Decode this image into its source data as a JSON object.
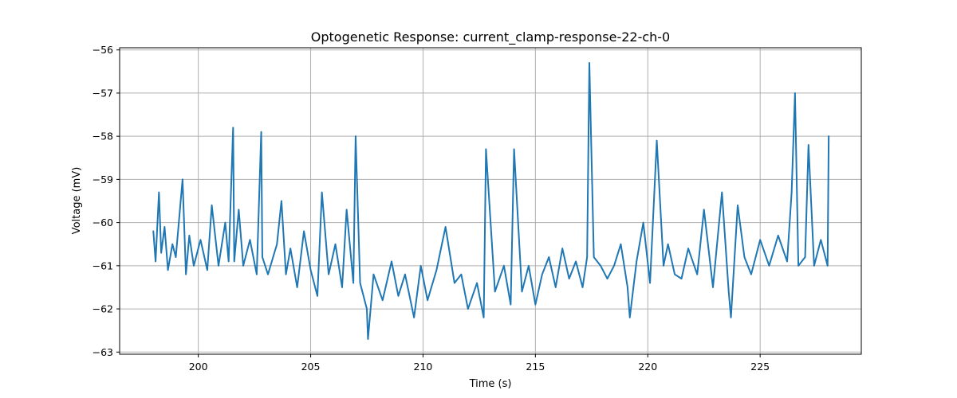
{
  "chart_data": {
    "type": "line",
    "title": "Optogenetic Response: current_clamp-response-22-ch-0",
    "xlabel": "Time (s)",
    "ylabel": "Voltage (mV)",
    "xlim": [
      196.5,
      229.5
    ],
    "ylim": [
      -63.05,
      -55.95
    ],
    "x_ticks": [
      200,
      205,
      210,
      215,
      220,
      225
    ],
    "y_ticks": [
      -63,
      -62,
      -61,
      -60,
      -59,
      -58,
      -57,
      -56
    ],
    "x_tick_labels": [
      "200",
      "205",
      "210",
      "215",
      "220",
      "225"
    ],
    "y_tick_labels": [
      "−63",
      "−62",
      "−61",
      "−60",
      "−59",
      "−58",
      "−57",
      "−56"
    ],
    "grid": true,
    "colors": {
      "line": "#1f77b4",
      "grid": "#b0b0b0"
    },
    "series": [
      {
        "x": [
          198.0,
          198.1,
          198.25,
          198.35,
          198.5,
          198.65,
          198.85,
          199.0,
          199.3,
          199.45,
          199.6,
          199.8,
          200.1,
          200.4,
          200.6,
          200.9,
          201.2,
          201.35,
          201.55,
          201.6,
          201.8,
          202.0,
          202.3,
          202.6,
          202.8,
          202.85,
          203.1,
          203.5,
          203.7,
          203.9,
          204.1,
          204.4,
          204.7,
          205.0,
          205.3,
          205.5,
          205.8,
          206.1,
          206.4,
          206.6,
          206.9,
          207.0,
          207.2,
          207.5,
          207.55,
          207.8,
          208.2,
          208.6,
          208.9,
          209.2,
          209.6,
          209.9,
          210.2,
          210.6,
          211.0,
          211.4,
          211.7,
          212.0,
          212.4,
          212.7,
          212.8,
          213.2,
          213.6,
          213.9,
          214.05,
          214.4,
          214.7,
          215.0,
          215.3,
          215.6,
          215.9,
          216.2,
          216.5,
          216.8,
          217.1,
          217.3,
          217.4,
          217.6,
          217.9,
          218.2,
          218.5,
          218.8,
          219.1,
          219.2,
          219.5,
          219.8,
          220.1,
          220.4,
          220.7,
          220.9,
          221.2,
          221.5,
          221.8,
          222.2,
          222.5,
          222.9,
          223.3,
          223.6,
          223.7,
          224.0,
          224.3,
          224.6,
          225.0,
          225.4,
          225.8,
          226.2,
          226.4,
          226.55,
          226.7,
          227.0,
          227.15,
          227.4,
          227.7,
          228.0,
          228.05
        ],
        "values": [
          -60.2,
          -60.9,
          -59.3,
          -60.7,
          -60.1,
          -61.1,
          -60.5,
          -60.8,
          -59.0,
          -61.2,
          -60.3,
          -61.0,
          -60.4,
          -61.1,
          -59.6,
          -61.0,
          -60.0,
          -60.9,
          -57.8,
          -60.9,
          -59.7,
          -61.0,
          -60.4,
          -61.2,
          -57.9,
          -60.8,
          -61.2,
          -60.5,
          -59.5,
          -61.2,
          -60.6,
          -61.5,
          -60.2,
          -61.1,
          -61.7,
          -59.3,
          -61.2,
          -60.5,
          -61.5,
          -59.7,
          -61.4,
          -58.0,
          -61.4,
          -62.0,
          -62.7,
          -61.2,
          -61.8,
          -60.9,
          -61.7,
          -61.2,
          -62.2,
          -61.0,
          -61.8,
          -61.1,
          -60.1,
          -61.4,
          -61.2,
          -62.0,
          -61.4,
          -62.2,
          -58.3,
          -61.6,
          -61.0,
          -61.9,
          -58.3,
          -61.6,
          -61.0,
          -61.9,
          -61.2,
          -60.8,
          -61.5,
          -60.6,
          -61.3,
          -60.9,
          -61.5,
          -60.8,
          -56.3,
          -60.8,
          -61.0,
          -61.3,
          -61.0,
          -60.5,
          -61.5,
          -62.2,
          -60.9,
          -60.0,
          -61.4,
          -58.1,
          -61.0,
          -60.5,
          -61.2,
          -61.3,
          -60.6,
          -61.2,
          -59.7,
          -61.5,
          -59.3,
          -61.6,
          -62.2,
          -59.6,
          -60.8,
          -61.2,
          -60.4,
          -61.0,
          -60.3,
          -60.9,
          -59.3,
          -57.0,
          -61.0,
          -60.8,
          -58.2,
          -61.0,
          -60.4,
          -61.0,
          -58.0
        ]
      }
    ]
  }
}
